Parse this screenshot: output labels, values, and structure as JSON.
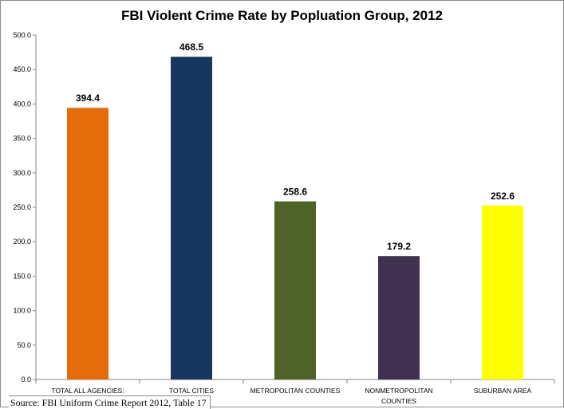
{
  "chart_data": {
    "type": "bar",
    "title": "FBI Violent Crime Rate by Popluation Group, 2012",
    "categories": [
      "TOTAL ALL AGENCIES:",
      "TOTAL CITIES",
      "METROPOLITAN COUNTIES",
      "NONMETROPOLITAN COUNTIES",
      "SUBURBAN AREA"
    ],
    "values": [
      394.4,
      468.5,
      258.6,
      179.2,
      252.6
    ],
    "value_labels": [
      "394.4",
      "468.5",
      "258.6",
      "179.2",
      "252.6"
    ],
    "colors": [
      "#E46C0A",
      "#17375E",
      "#4F6228",
      "#403151",
      "#FFFF00"
    ],
    "ylim": [
      0,
      500
    ],
    "yticks": [
      "0.0",
      "50.0",
      "100.0",
      "150.0",
      "200.0",
      "250.0",
      "300.0",
      "350.0",
      "400.0",
      "450.0",
      "500.0"
    ],
    "xlabel": "",
    "ylabel": "",
    "grid": false,
    "legend": "none"
  },
  "source_note": "Source: FBI Uniform Crime Report 2012, Table 17"
}
